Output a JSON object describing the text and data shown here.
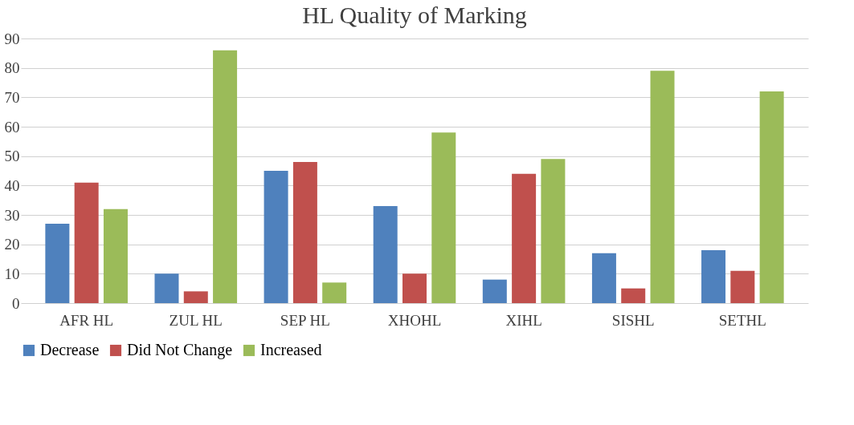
{
  "chart_data": {
    "type": "bar",
    "title": "HL Quality of Marking",
    "categories": [
      "AFR HL",
      "ZUL HL",
      "SEP HL",
      "XHOHL",
      "XIHL",
      "SISHL",
      "SETHL"
    ],
    "series": [
      {
        "name": "Decrease",
        "color": "#4f81bd",
        "values": [
          27,
          10,
          45,
          33,
          8,
          17,
          18
        ]
      },
      {
        "name": "Did Not Change",
        "color": "#c0504d",
        "values": [
          41,
          4,
          48,
          10,
          44,
          5,
          11
        ]
      },
      {
        "name": "Increased",
        "color": "#9bbb59",
        "values": [
          32,
          86,
          7,
          58,
          49,
          79,
          72
        ]
      }
    ],
    "ylim": [
      0,
      90
    ],
    "yticks": [
      0,
      10,
      20,
      30,
      40,
      50,
      60,
      70,
      80,
      90
    ],
    "grid": "y",
    "legend": "bottom"
  }
}
